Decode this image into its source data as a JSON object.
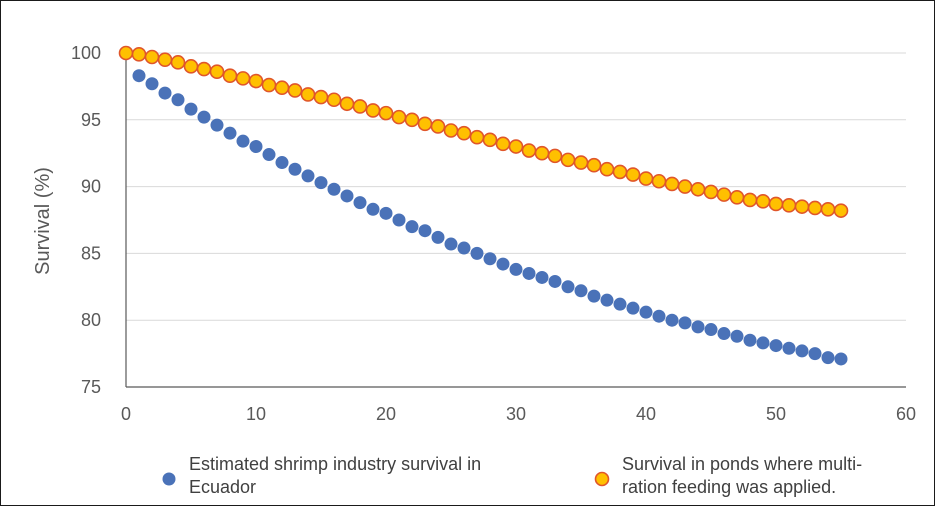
{
  "chart_data": {
    "type": "scatter",
    "title": "",
    "xlabel": "",
    "ylabel": "Survival (%)",
    "xlim": [
      0,
      60
    ],
    "ylim": [
      75,
      100
    ],
    "x_ticks": [
      "0",
      "10",
      "20",
      "30",
      "40",
      "50",
      "60"
    ],
    "y_ticks": [
      "75",
      "80",
      "85",
      "90",
      "95",
      "100"
    ],
    "grid": "horizontal",
    "legend_position": "bottom",
    "series": [
      {
        "name": "Estimated shrimp industry survival in Ecuador",
        "legend_lines": [
          "Estimated shrimp industry survival in",
          "Ecuador"
        ],
        "color": "#4a72b8",
        "edge_color": "#4a72b8",
        "x": [
          0,
          1,
          2,
          3,
          4,
          5,
          6,
          7,
          8,
          9,
          10,
          11,
          12,
          13,
          14,
          15,
          16,
          17,
          18,
          19,
          20,
          21,
          22,
          23,
          24,
          25,
          26,
          27,
          28,
          29,
          30,
          31,
          32,
          33,
          34,
          35,
          36,
          37,
          38,
          39,
          40,
          41,
          42,
          43,
          44,
          45,
          46,
          47,
          48,
          49,
          50,
          51,
          52,
          53,
          54,
          55
        ],
        "y": [
          100,
          98.3,
          97.7,
          97.0,
          96.5,
          95.8,
          95.2,
          94.6,
          94.0,
          93.4,
          93.0,
          92.4,
          91.8,
          91.3,
          90.8,
          90.3,
          89.8,
          89.3,
          88.8,
          88.3,
          88.0,
          87.5,
          87.0,
          86.7,
          86.2,
          85.7,
          85.4,
          85.0,
          84.6,
          84.2,
          83.8,
          83.5,
          83.2,
          82.9,
          82.5,
          82.2,
          81.8,
          81.5,
          81.2,
          80.9,
          80.6,
          80.3,
          80.0,
          79.8,
          79.5,
          79.3,
          79.0,
          78.8,
          78.5,
          78.3,
          78.1,
          77.9,
          77.7,
          77.5,
          77.2,
          77.1
        ]
      },
      {
        "name": "Survival in ponds where multi-ration feeding was applied.",
        "legend_lines": [
          "Survival in ponds where multi-",
          "ration feeding was applied."
        ],
        "color": "#ffc000",
        "edge_color": "#e0562a",
        "x": [
          0,
          1,
          2,
          3,
          4,
          5,
          6,
          7,
          8,
          9,
          10,
          11,
          12,
          13,
          14,
          15,
          16,
          17,
          18,
          19,
          20,
          21,
          22,
          23,
          24,
          25,
          26,
          27,
          28,
          29,
          30,
          31,
          32,
          33,
          34,
          35,
          36,
          37,
          38,
          39,
          40,
          41,
          42,
          43,
          44,
          45,
          46,
          47,
          48,
          49,
          50,
          51,
          52,
          53,
          54,
          55
        ],
        "y": [
          100,
          99.9,
          99.7,
          99.5,
          99.3,
          99.0,
          98.8,
          98.6,
          98.3,
          98.1,
          97.9,
          97.6,
          97.4,
          97.2,
          96.9,
          96.7,
          96.5,
          96.2,
          96.0,
          95.7,
          95.5,
          95.2,
          95.0,
          94.7,
          94.5,
          94.2,
          94.0,
          93.7,
          93.5,
          93.2,
          93.0,
          92.7,
          92.5,
          92.3,
          92.0,
          91.8,
          91.6,
          91.3,
          91.1,
          90.9,
          90.6,
          90.4,
          90.2,
          90.0,
          89.8,
          89.6,
          89.4,
          89.2,
          89.0,
          88.9,
          88.7,
          88.6,
          88.5,
          88.4,
          88.3,
          88.2
        ]
      }
    ]
  }
}
